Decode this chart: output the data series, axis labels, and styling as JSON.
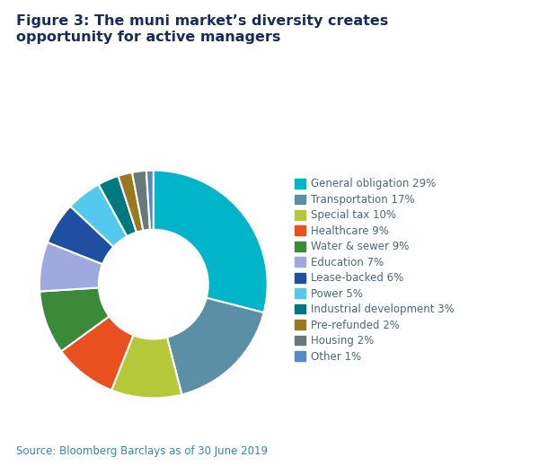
{
  "title": "Figure 3: The muni market’s diversity creates\nopportunity for active managers",
  "source": "Source: Bloomberg Barclays as of 30 June 2019",
  "labels": [
    "General obligation 29%",
    "Transportation 17%",
    "Special tax 10%",
    "Healthcare 9%",
    "Water & sewer 9%",
    "Education 7%",
    "Lease-backed 6%",
    "Power 5%",
    "Industrial development 3%",
    "Pre-refunded 2%",
    "Housing 2%",
    "Other 1%"
  ],
  "values": [
    29,
    17,
    10,
    9,
    9,
    7,
    6,
    5,
    3,
    2,
    2,
    1
  ],
  "colors": [
    "#00b5c9",
    "#5b8fa5",
    "#b5c83a",
    "#e85020",
    "#3a8a3a",
    "#a0a8e0",
    "#1e4fa0",
    "#55c8f0",
    "#007880",
    "#9a7820",
    "#6a7878",
    "#5888c8"
  ],
  "background_color": "#ffffff",
  "title_color": "#1a2a5a",
  "source_color": "#2a8ab0",
  "legend_text_color": "#4a6878",
  "title_fontsize": 11.5,
  "source_fontsize": 8.5,
  "legend_fontsize": 8.5
}
